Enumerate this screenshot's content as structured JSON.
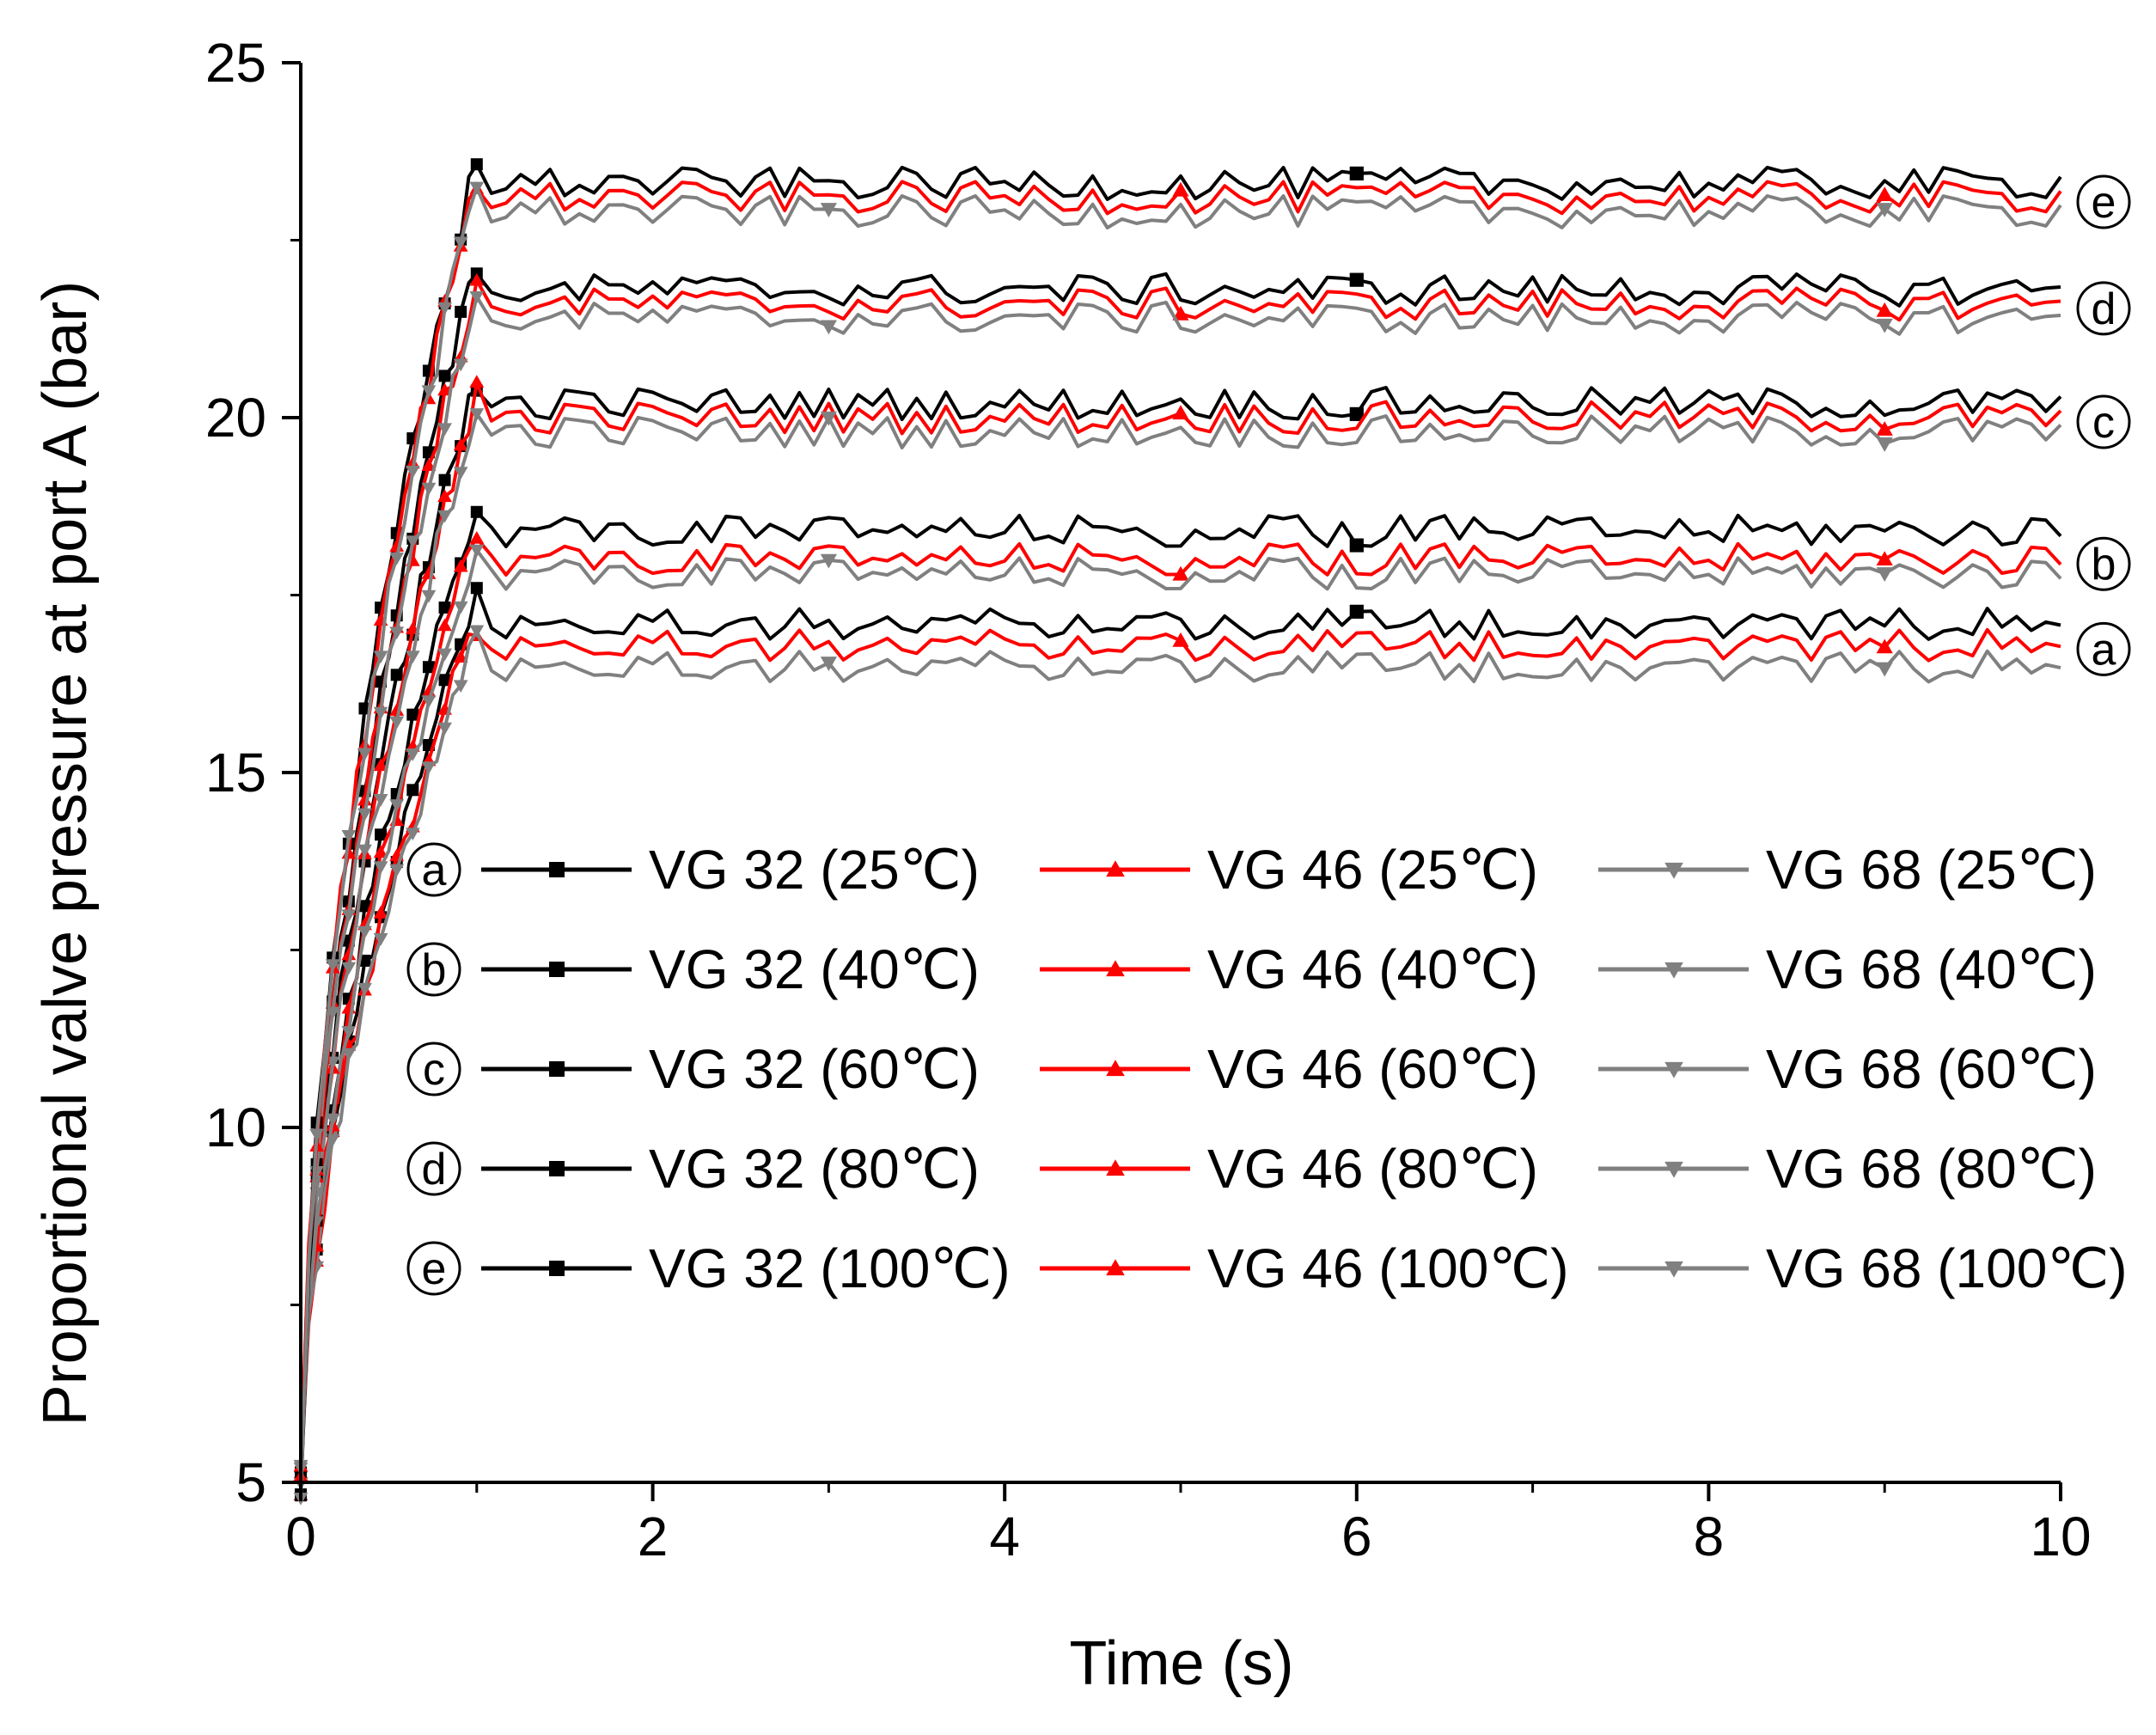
{
  "chart_data": {
    "type": "line",
    "title": "",
    "xlabel": "Time (s)",
    "ylabel": "Proportional valve pressure at port A (bar)",
    "xlim": [
      0,
      10
    ],
    "ylim": [
      5,
      25
    ],
    "xticks": [
      "0",
      "2",
      "4",
      "6",
      "8",
      "10"
    ],
    "yticks": [
      "5",
      "10",
      "15",
      "20",
      "25"
    ],
    "grid": false,
    "colors": {
      "VG 32": "#000000",
      "VG 46": "#ff0000",
      "VG 68": "#808080"
    },
    "markers": {
      "VG 32": "square",
      "VG 46": "triangle-up",
      "VG 68": "triangle-down"
    },
    "rise_time_s": 1.0,
    "groups": [
      {
        "label": "a",
        "temperature": "25℃",
        "steady": {
          "VG 32": 17.1,
          "VG 46": 16.8,
          "VG 68": 16.5
        }
      },
      {
        "label": "b",
        "temperature": "40℃",
        "steady": {
          "VG 32": 18.4,
          "VG 46": 18.0,
          "VG 68": 17.8
        }
      },
      {
        "label": "c",
        "temperature": "60℃",
        "steady": {
          "VG 32": 20.2,
          "VG 46": 20.0,
          "VG 68": 19.8
        }
      },
      {
        "label": "d",
        "temperature": "80℃",
        "steady": {
          "VG 32": 21.8,
          "VG 46": 21.6,
          "VG 68": 21.4
        }
      },
      {
        "label": "e",
        "temperature": "100℃",
        "steady": {
          "VG 32": 23.3,
          "VG 46": 23.1,
          "VG 68": 22.9
        }
      }
    ],
    "legend": {
      "position": "center",
      "rows": [
        {
          "label": "a",
          "entries": [
            "VG 32 (25℃)",
            "VG 46 (25℃)",
            "VG 68 (25℃)"
          ]
        },
        {
          "label": "b",
          "entries": [
            "VG 32 (40℃)",
            "VG 46 (40℃)",
            "VG 68 (40℃)"
          ]
        },
        {
          "label": "c",
          "entries": [
            "VG 32 (60℃)",
            "VG 46 (60℃)",
            "VG 68 (60℃)"
          ]
        },
        {
          "label": "d",
          "entries": [
            "VG 32 (80℃)",
            "VG 46 (80℃)",
            "VG 68 (80℃)"
          ]
        },
        {
          "label": "e",
          "entries": [
            "VG 32 (100℃)",
            "VG 46 (100℃)",
            "VG 68 (100℃)"
          ]
        }
      ]
    }
  }
}
